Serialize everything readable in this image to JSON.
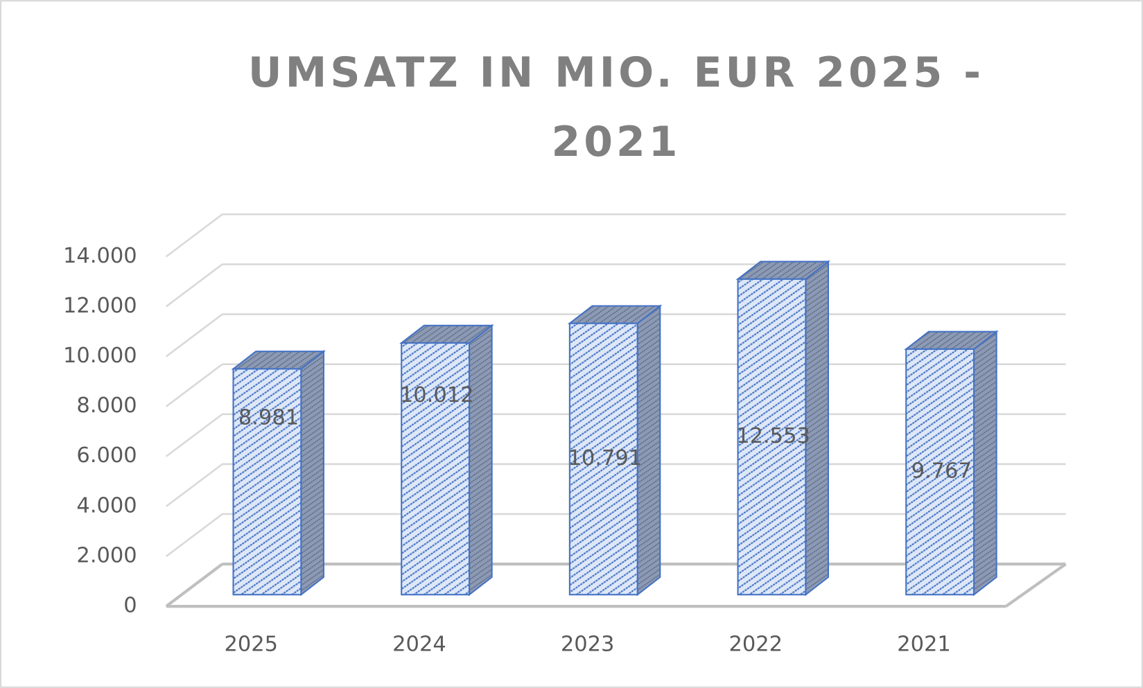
{
  "chart_data": {
    "type": "bar",
    "title": "UMSATZ IN MIO. EUR 2025 - 2021",
    "categories": [
      "2025",
      "2024",
      "2023",
      "2022",
      "2021"
    ],
    "values": [
      8981,
      10012,
      10791,
      12553,
      9767
    ],
    "value_labels": [
      "8.981",
      "10.012",
      "10.791",
      "12.553",
      "9.767"
    ],
    "color": "#4472c4",
    "ylim": [
      0,
      14000
    ],
    "yticks": [
      0,
      {
        "value": 2000,
        "label": "2.000"
      },
      {
        "value": 4000,
        "label": "4.000"
      },
      {
        "value": 6000,
        "label": "6.000"
      },
      {
        "value": 8000,
        "label": "8.000"
      },
      {
        "value": 10000,
        "label": "10.000"
      },
      {
        "value": 12000,
        "label": "12.000"
      },
      {
        "value": 14000,
        "label": "14.000"
      }
    ],
    "grid": true
  }
}
